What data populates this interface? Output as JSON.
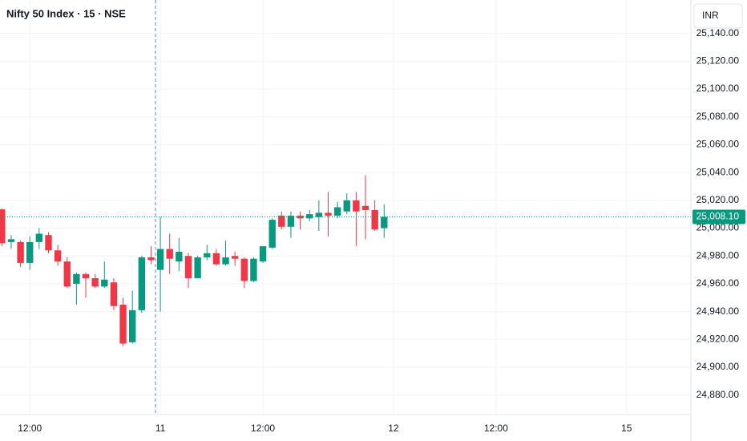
{
  "chart_data": {
    "type": "candlestick",
    "title": "Nifty 50 Index · 15 · NSE",
    "currency": "INR",
    "x": [
      -17,
      -16,
      -15,
      -14,
      -13,
      -12,
      -11,
      -10,
      -9,
      -8,
      -7,
      -6,
      -5,
      -4,
      -3,
      -2,
      -1,
      0,
      1,
      2,
      3,
      4,
      5,
      6,
      7,
      8,
      9,
      10,
      11,
      12,
      13,
      14,
      15,
      16,
      17,
      18,
      19,
      20,
      21,
      22,
      23,
      24
    ],
    "open": [
      25013.5,
      24990,
      24990,
      24975,
      24990,
      24995,
      24984,
      24976,
      24960,
      24967,
      24964,
      24958,
      24961,
      24945,
      24918,
      24941,
      24979,
      24970,
      24985,
      24976,
      24980,
      24964,
      24979,
      24982,
      24974,
      24980,
      24978,
      24962,
      24976,
      24986,
      25009,
      25001,
      25009,
      25007,
      25008,
      25011,
      25009,
      25012,
      25020,
      25016,
      25013,
      25000
    ],
    "high": [
      25014,
      24995,
      24991,
      24994,
      25000,
      24997,
      24988,
      24979,
      24968,
      24968,
      24967,
      24976,
      24964,
      24950,
      24955,
      24980,
      24987,
      25008,
      24996,
      24993,
      24982,
      24980,
      24988,
      24985,
      24991,
      24983,
      24979,
      24979,
      24987,
      25007,
      25012,
      25012,
      25012,
      25013,
      25020,
      25026,
      25019,
      25025,
      25026,
      25038,
      25020,
      25017
    ],
    "low": [
      24987,
      24985,
      24972,
      24970,
      24985,
      24982,
      24973,
      24957,
      24945,
      24950,
      24957,
      24957,
      24941,
      24915,
      24917,
      24939,
      24974,
      24940,
      24967,
      24969,
      24957,
      24964,
      24977,
      24973,
      24973,
      24973,
      24957,
      24961,
      24975,
      24985,
      24999,
      24993,
      24999,
      25005,
      24998,
      24994,
      25007,
      25010,
      24987,
      24992,
      24998,
      24993
    ],
    "close": [
      24989.2,
      24992,
      24975,
      24990,
      24996,
      24984,
      24976,
      24958,
      24967,
      24964,
      24958,
      24963,
      24944,
      24917,
      24941,
      24979,
      24977,
      24985,
      24978,
      24983,
      24964,
      24979,
      24982,
      24974,
      24979,
      24978,
      24962,
      24978,
      24987,
      25006,
      25001,
      25009,
      25007,
      25010,
      25011,
      25009,
      25015,
      25020,
      25012,
      25013,
      24999,
      25008.1
    ],
    "up_color": "#089981",
    "down_color": "#f23645",
    "last": {
      "value": 25008.1,
      "label": "25,008.10"
    },
    "xlim": [
      -17.2,
      56.9
    ],
    "ylim": [
      24866,
      25164
    ],
    "xticks": [
      {
        "value": -14,
        "label": "12:00"
      },
      {
        "value": 0,
        "label": "11"
      },
      {
        "value": 11,
        "label": "12:00"
      },
      {
        "value": 25,
        "label": "12"
      },
      {
        "value": 36,
        "label": "12:00"
      },
      {
        "value": 50,
        "label": "15"
      }
    ],
    "yticks": [
      {
        "value": 24880,
        "label": "24,880.00"
      },
      {
        "value": 24900,
        "label": "24,900.00"
      },
      {
        "value": 24920,
        "label": "24,920.00"
      },
      {
        "value": 24940,
        "label": "24,940.00"
      },
      {
        "value": 24960,
        "label": "24,960.00"
      },
      {
        "value": 24980,
        "label": "24,980.00"
      },
      {
        "value": 25000,
        "label": "25,000.00"
      },
      {
        "value": 25020,
        "label": "25,020.00"
      },
      {
        "value": 25040,
        "label": "25,040.00"
      },
      {
        "value": 25060,
        "label": "25,060.00"
      },
      {
        "value": 25080,
        "label": "25,080.00"
      },
      {
        "value": 25100,
        "label": "25,100.00"
      },
      {
        "value": 25120,
        "label": "25,120.00"
      },
      {
        "value": 25140,
        "label": "25,140.00"
      }
    ],
    "grid": true
  }
}
